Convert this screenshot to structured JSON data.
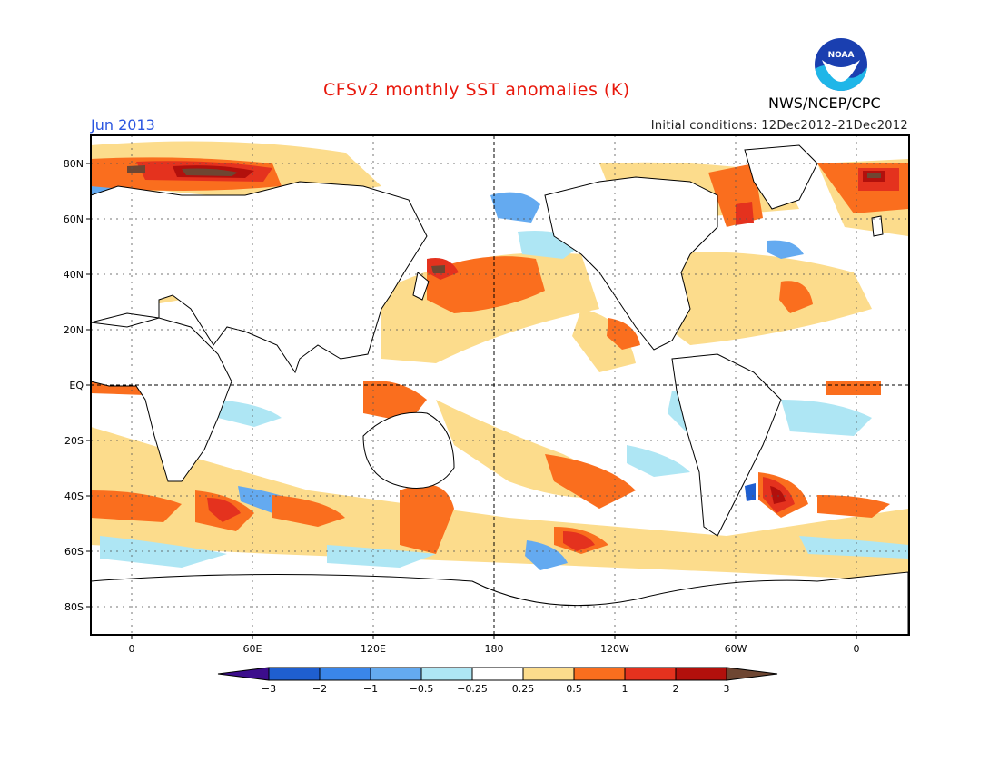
{
  "title": "CFSv2 monthly SST anomalies (K)",
  "month_label": "Jun 2013",
  "initial_conditions": "Initial conditions: 12Dec2012–21Dec2012",
  "organization": "NWS/NCEP/CPC",
  "logo_text": "NOAA",
  "map": {
    "lat_ticks": [
      "80N",
      "60N",
      "40N",
      "20N",
      "EQ",
      "20S",
      "40S",
      "60S",
      "80S"
    ],
    "lon_ticks": [
      "0",
      "60E",
      "120E",
      "180",
      "120W",
      "60W",
      "0"
    ]
  },
  "legend": {
    "levels": [
      "−3",
      "−2",
      "−1",
      "−0.5",
      "−0.25",
      "0.25",
      "0.5",
      "1",
      "2",
      "3"
    ],
    "colors": [
      "#3c0d8c",
      "#1f5fd0",
      "#3a86ea",
      "#64aaf0",
      "#aee6f4",
      "#ffffff",
      "#fcdc8c",
      "#fa6e1e",
      "#e4321e",
      "#b2100c",
      "#6e4632"
    ]
  }
}
